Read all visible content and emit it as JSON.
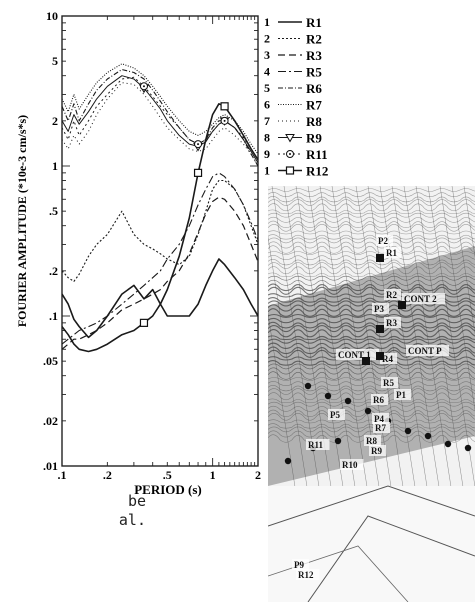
{
  "chart_data": {
    "type": "line",
    "xscale": "log",
    "yscale": "log",
    "xlim": [
      0.1,
      2
    ],
    "ylim": [
      0.01,
      10
    ],
    "xlabel": "PERIOD (s)",
    "ylabel": "FOURIER AMPLITUDE (*10e-3 cm/s*s)",
    "xticks": [
      ".1",
      ".2",
      ".5",
      "1",
      "2"
    ],
    "xtick_values": [
      0.1,
      0.2,
      0.5,
      1,
      2
    ],
    "yticks": [
      "10",
      "5",
      "2",
      "1",
      ".5",
      ".2",
      ".1",
      ".05",
      ".02",
      ".01"
    ],
    "ytick_values": [
      10,
      5,
      2,
      1,
      0.5,
      0.2,
      0.1,
      0.05,
      0.02,
      0.01
    ],
    "legend_position": "right, outside plot",
    "series": [
      {
        "name": "R1",
        "num": "1",
        "dash": "",
        "width": 1.6,
        "marker": "",
        "x": [
          0.1,
          0.11,
          0.12,
          0.13,
          0.15,
          0.17,
          0.2,
          0.25,
          0.3,
          0.35,
          0.4,
          0.45,
          0.5,
          0.6,
          0.7,
          0.8,
          0.9,
          1.0,
          1.1,
          1.2,
          1.4,
          1.6,
          1.8,
          2.0
        ],
        "y": [
          0.14,
          0.12,
          0.095,
          0.085,
          0.072,
          0.08,
          0.1,
          0.14,
          0.16,
          0.13,
          0.15,
          0.12,
          0.1,
          0.1,
          0.1,
          0.12,
          0.16,
          0.2,
          0.24,
          0.22,
          0.18,
          0.15,
          0.12,
          0.1
        ]
      },
      {
        "name": "R2",
        "num": "2",
        "dash": "2,2",
        "width": 1.1,
        "marker": "",
        "x": [
          0.1,
          0.11,
          0.12,
          0.13,
          0.15,
          0.17,
          0.2,
          0.25,
          0.3,
          0.35,
          0.4,
          0.45,
          0.5,
          0.6,
          0.7,
          0.8,
          0.9,
          1.0,
          1.1,
          1.2,
          1.4,
          1.6,
          1.8,
          2.0
        ],
        "y": [
          0.2,
          0.18,
          0.17,
          0.19,
          0.25,
          0.3,
          0.35,
          0.5,
          0.35,
          0.3,
          0.28,
          0.26,
          0.24,
          0.22,
          0.25,
          0.35,
          0.5,
          0.7,
          0.8,
          0.8,
          0.7,
          0.55,
          0.4,
          0.3
        ]
      },
      {
        "name": "R3",
        "num": "3",
        "dash": "7,4",
        "width": 1.2,
        "marker": "",
        "x": [
          0.1,
          0.11,
          0.12,
          0.13,
          0.15,
          0.17,
          0.2,
          0.25,
          0.3,
          0.35,
          0.4,
          0.45,
          0.5,
          0.6,
          0.7,
          0.8,
          0.9,
          1.0,
          1.1,
          1.2,
          1.4,
          1.6,
          1.8,
          2.0
        ],
        "y": [
          0.06,
          0.065,
          0.07,
          0.07,
          0.075,
          0.08,
          0.09,
          0.11,
          0.12,
          0.13,
          0.14,
          0.15,
          0.17,
          0.2,
          0.26,
          0.36,
          0.48,
          0.58,
          0.62,
          0.6,
          0.5,
          0.4,
          0.3,
          0.23
        ]
      },
      {
        "name": "R5",
        "num": "4",
        "dash": "8,3,2,3",
        "width": 1.1,
        "marker": "",
        "x": [
          0.1,
          0.11,
          0.12,
          0.13,
          0.15,
          0.17,
          0.2,
          0.25,
          0.3,
          0.35,
          0.4,
          0.45,
          0.5,
          0.6,
          0.7,
          0.8,
          0.9,
          1.0,
          1.1,
          1.2,
          1.4,
          1.6,
          1.8,
          2.0
        ],
        "y": [
          0.065,
          0.07,
          0.075,
          0.08,
          0.085,
          0.09,
          0.1,
          0.12,
          0.14,
          0.16,
          0.18,
          0.2,
          0.24,
          0.3,
          0.4,
          0.55,
          0.7,
          0.85,
          0.9,
          0.85,
          0.7,
          0.55,
          0.42,
          0.32
        ]
      },
      {
        "name": "R6",
        "num": "5",
        "dash": "5,2,1,2",
        "width": 1.1,
        "marker": "",
        "x": [
          0.1,
          0.11,
          0.12,
          0.13,
          0.15,
          0.17,
          0.2,
          0.25,
          0.3,
          0.35,
          0.4,
          0.45,
          0.5,
          0.6,
          0.7,
          0.8,
          0.9,
          1.0,
          1.1,
          1.2,
          1.4,
          1.6,
          1.8,
          2.0
        ],
        "y": [
          2.5,
          2.0,
          2.6,
          2.0,
          2.6,
          3.2,
          3.8,
          4.4,
          4.2,
          3.8,
          3.2,
          2.7,
          2.3,
          1.8,
          1.5,
          1.4,
          1.5,
          1.8,
          2.0,
          2.0,
          1.8,
          1.5,
          1.2,
          1.0
        ]
      },
      {
        "name": "R7",
        "num": "6",
        "dash": "1,1.5",
        "width": 1.1,
        "marker": "",
        "x": [
          0.1,
          0.11,
          0.12,
          0.13,
          0.15,
          0.17,
          0.2,
          0.25,
          0.3,
          0.35,
          0.4,
          0.45,
          0.5,
          0.6,
          0.7,
          0.8,
          0.9,
          1.0,
          1.1,
          1.2,
          1.4,
          1.6,
          1.8,
          2.0
        ],
        "y": [
          2.8,
          2.3,
          3.0,
          2.4,
          3.0,
          3.6,
          4.2,
          4.8,
          4.5,
          4.0,
          3.4,
          2.9,
          2.5,
          2.0,
          1.7,
          1.6,
          1.7,
          1.9,
          2.1,
          2.2,
          2.0,
          1.7,
          1.4,
          1.2
        ]
      },
      {
        "name": "R8",
        "num": "7",
        "dash": "1,3",
        "width": 1.0,
        "marker": "",
        "x": [
          0.1,
          0.11,
          0.12,
          0.13,
          0.15,
          0.17,
          0.2,
          0.25,
          0.3,
          0.35,
          0.4,
          0.45,
          0.5,
          0.6,
          0.7,
          0.8,
          0.9,
          1.0,
          1.1,
          1.2,
          1.4,
          1.6,
          1.8,
          2.0
        ],
        "y": [
          1.5,
          1.3,
          1.6,
          1.4,
          1.7,
          2.2,
          2.8,
          3.6,
          3.5,
          3.0,
          2.5,
          2.1,
          1.8,
          1.5,
          1.3,
          1.25,
          1.3,
          1.5,
          1.7,
          1.8,
          1.6,
          1.4,
          1.2,
          1.0
        ]
      },
      {
        "name": "R9",
        "num": "8",
        "dash": "",
        "width": 1.0,
        "marker": "triangle",
        "x": [
          0.1,
          0.11,
          0.12,
          0.13,
          0.15,
          0.17,
          0.2,
          0.25,
          0.3,
          0.35,
          0.4,
          0.45,
          0.5,
          0.6,
          0.7,
          0.8,
          0.9,
          1.0,
          1.1,
          1.2,
          1.4,
          1.6,
          1.8,
          2.0
        ],
        "y": [
          2.0,
          1.7,
          2.2,
          1.9,
          2.3,
          2.8,
          3.4,
          4.0,
          3.8,
          3.3,
          2.8,
          2.4,
          2.0,
          1.6,
          1.4,
          1.35,
          1.45,
          1.7,
          1.9,
          2.0,
          1.8,
          1.5,
          1.25,
          1.05
        ]
      },
      {
        "name": "R11",
        "num": "9",
        "dash": "2,3",
        "width": 1.0,
        "marker": "circle",
        "x": [
          0.1,
          0.11,
          0.12,
          0.13,
          0.15,
          0.17,
          0.2,
          0.25,
          0.3,
          0.35,
          0.4,
          0.45,
          0.5,
          0.6,
          0.7,
          0.8,
          0.9,
          1.0,
          1.1,
          1.2,
          1.4,
          1.6,
          1.8,
          2.0
        ],
        "y": [
          1.8,
          1.5,
          2.0,
          1.6,
          2.0,
          2.5,
          3.0,
          3.8,
          3.9,
          3.4,
          2.9,
          2.5,
          2.2,
          1.8,
          1.5,
          1.4,
          1.5,
          1.7,
          1.9,
          2.0,
          1.8,
          1.55,
          1.3,
          1.1
        ]
      },
      {
        "name": "R12",
        "num": "1",
        "dash": "",
        "width": 1.6,
        "marker": "square",
        "x": [
          0.1,
          0.11,
          0.12,
          0.13,
          0.15,
          0.17,
          0.2,
          0.25,
          0.3,
          0.35,
          0.4,
          0.45,
          0.5,
          0.6,
          0.7,
          0.8,
          0.9,
          1.0,
          1.1,
          1.2,
          1.4,
          1.6,
          1.8,
          2.0
        ],
        "y": [
          0.085,
          0.075,
          0.065,
          0.06,
          0.058,
          0.06,
          0.065,
          0.075,
          0.08,
          0.09,
          0.1,
          0.12,
          0.15,
          0.25,
          0.45,
          0.9,
          1.5,
          2.2,
          2.6,
          2.5,
          2.0,
          1.6,
          1.3,
          1.1
        ]
      }
    ]
  },
  "page_text": {
    "cut_line_1": "be",
    "cut_line_2": "al."
  },
  "map": {
    "labels": [
      "R1",
      "R2",
      "CONT 2",
      "R3",
      "CONT 1",
      "R4",
      "CONT P",
      "R5",
      "R6",
      "R7",
      "R8",
      "R9",
      "R10",
      "R11",
      "R12",
      "P2",
      "P3",
      "P1",
      "P4",
      "P5",
      "P9"
    ]
  }
}
